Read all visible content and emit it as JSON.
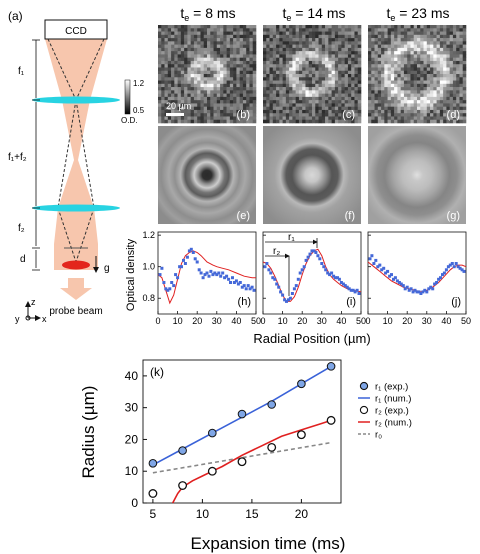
{
  "panel_labels": {
    "a": "(a)",
    "b": "(b)",
    "c": "(c)",
    "d": "(d)",
    "e": "(e)",
    "f": "(f)",
    "g": "(g)",
    "h": "(h)",
    "i": "(i)",
    "j": "(j)",
    "k": "(k)"
  },
  "setup": {
    "ccd": "CCD",
    "f1": "f₁",
    "f1f2": "f₁+f₂",
    "f2": "f₂",
    "d": "d",
    "g": "g",
    "probe": "probe beam",
    "axis_z": "z",
    "axis_y": "y",
    "axis_x": "x",
    "colors": {
      "beam": "#f7c6ad",
      "lens": "#28d3e2",
      "cloud": "#e3261c"
    }
  },
  "times": [
    {
      "base": "t",
      "sub": "e",
      "rest": " = 8 ms"
    },
    {
      "base": "t",
      "sub": "e",
      "rest": " = 14 ms"
    },
    {
      "base": "t",
      "sub": "e",
      "rest": " = 23 ms"
    }
  ],
  "colorbar": {
    "max": "1.2",
    "min": "0.5",
    "label": "O.D."
  },
  "scalebar": "20 µm",
  "profiles": {
    "ylabel": "Optical density",
    "xlabel": "Radial Position (µm)",
    "yticks": [
      "0.8",
      "1.0",
      "1.2"
    ],
    "xticks": [
      "0",
      "10",
      "20",
      "30",
      "40",
      "50"
    ],
    "r1": "r₁",
    "r2": "r₂",
    "colors": {
      "exp": "#4468d8",
      "num": "#e02020"
    }
  },
  "chart_data": [
    {
      "type": "line",
      "title": "(h)",
      "xlabel": "Radial Position (µm)",
      "ylabel": "Optical density",
      "xlim": [
        0,
        50
      ],
      "ylim": [
        0.7,
        1.22
      ],
      "series": [
        {
          "points": [
            [
              1,
              0.95
            ],
            [
              2,
              0.99
            ],
            [
              3,
              0.9
            ],
            [
              4,
              0.86
            ],
            [
              5,
              0.85
            ],
            [
              6,
              0.86
            ],
            [
              7,
              0.9
            ],
            [
              8,
              0.88
            ],
            [
              9,
              0.95
            ],
            [
              10,
              0.93
            ],
            [
              11,
              1.0
            ],
            [
              12,
              1.0
            ],
            [
              13,
              1.04
            ],
            [
              14,
              1.02
            ],
            [
              15,
              1.06
            ],
            [
              16,
              1.1
            ],
            [
              17,
              1.11
            ],
            [
              18,
              1.09
            ],
            [
              19,
              1.05
            ],
            [
              20,
              1.03
            ],
            [
              21,
              0.98
            ],
            [
              22,
              0.96
            ],
            [
              23,
              0.93
            ],
            [
              24,
              0.95
            ],
            [
              25,
              0.96
            ],
            [
              26,
              0.94
            ],
            [
              27,
              0.97
            ],
            [
              28,
              0.95
            ],
            [
              29,
              0.96
            ],
            [
              30,
              0.95
            ],
            [
              31,
              0.96
            ],
            [
              32,
              0.94
            ],
            [
              33,
              0.96
            ],
            [
              34,
              0.93
            ],
            [
              35,
              0.94
            ],
            [
              36,
              0.92
            ],
            [
              37,
              0.9
            ],
            [
              38,
              0.93
            ],
            [
              39,
              0.9
            ],
            [
              40,
              0.91
            ],
            [
              41,
              0.89
            ],
            [
              42,
              0.9
            ],
            [
              43,
              0.87
            ],
            [
              44,
              0.88
            ],
            [
              45,
              0.86
            ],
            [
              46,
              0.88
            ],
            [
              47,
              0.86
            ],
            [
              48,
              0.87
            ],
            [
              49,
              0.85
            ]
          ]
        },
        {
          "points": [
            [
              0,
              0.95
            ],
            [
              2,
              0.93
            ],
            [
              4,
              0.85
            ],
            [
              6,
              0.77
            ],
            [
              8,
              0.82
            ],
            [
              10,
              0.92
            ],
            [
              12,
              1.02
            ],
            [
              14,
              1.07
            ],
            [
              16,
              1.09
            ],
            [
              18,
              1.1
            ],
            [
              20,
              1.09
            ],
            [
              22,
              1.07
            ],
            [
              25,
              1.03
            ],
            [
              28,
              1.01
            ],
            [
              30,
              1.0
            ],
            [
              33,
              0.99
            ],
            [
              36,
              0.98
            ],
            [
              40,
              0.96
            ],
            [
              44,
              0.94
            ],
            [
              48,
              0.93
            ],
            [
              50,
              0.93
            ]
          ]
        }
      ]
    },
    {
      "type": "line",
      "title": "(i)",
      "xlabel": "Radial Position (µm)",
      "ylabel": "Optical density",
      "xlim": [
        0,
        50
      ],
      "ylim": [
        0.7,
        1.22
      ],
      "series": [
        {
          "points": [
            [
              1,
              1.0
            ],
            [
              2,
              1.02
            ],
            [
              3,
              0.98
            ],
            [
              4,
              0.96
            ],
            [
              5,
              0.93
            ],
            [
              6,
              0.92
            ],
            [
              7,
              0.89
            ],
            [
              8,
              0.87
            ],
            [
              9,
              0.84
            ],
            [
              10,
              0.82
            ],
            [
              11,
              0.79
            ],
            [
              12,
              0.78
            ],
            [
              13,
              0.79
            ],
            [
              14,
              0.8
            ],
            [
              15,
              0.83
            ],
            [
              16,
              0.86
            ],
            [
              17,
              0.88
            ],
            [
              18,
              0.92
            ],
            [
              19,
              0.96
            ],
            [
              20,
              0.98
            ],
            [
              21,
              1.0
            ],
            [
              22,
              1.04
            ],
            [
              23,
              1.06
            ],
            [
              24,
              1.08
            ],
            [
              25,
              1.1
            ],
            [
              26,
              1.1
            ],
            [
              27,
              1.09
            ],
            [
              28,
              1.07
            ],
            [
              29,
              1.05
            ],
            [
              30,
              1.02
            ],
            [
              31,
              1.0
            ],
            [
              32,
              0.98
            ],
            [
              33,
              0.96
            ],
            [
              34,
              0.95
            ],
            [
              35,
              0.96
            ],
            [
              36,
              0.94
            ],
            [
              37,
              0.93
            ],
            [
              38,
              0.93
            ],
            [
              39,
              0.92
            ],
            [
              40,
              0.9
            ],
            [
              41,
              0.89
            ],
            [
              42,
              0.88
            ],
            [
              43,
              0.87
            ],
            [
              44,
              0.86
            ],
            [
              45,
              0.85
            ],
            [
              46,
              0.85
            ],
            [
              47,
              0.84
            ],
            [
              48,
              0.85
            ],
            [
              49,
              0.83
            ]
          ]
        },
        {
          "points": [
            [
              0,
              1.03
            ],
            [
              2,
              1.02
            ],
            [
              4,
              0.99
            ],
            [
              6,
              0.94
            ],
            [
              8,
              0.88
            ],
            [
              10,
              0.82
            ],
            [
              12,
              0.78
            ],
            [
              14,
              0.78
            ],
            [
              16,
              0.81
            ],
            [
              18,
              0.87
            ],
            [
              20,
              0.95
            ],
            [
              22,
              1.02
            ],
            [
              24,
              1.07
            ],
            [
              26,
              1.1
            ],
            [
              28,
              1.11
            ],
            [
              30,
              1.07
            ],
            [
              32,
              1.0
            ],
            [
              34,
              0.95
            ],
            [
              36,
              0.92
            ],
            [
              38,
              0.9
            ],
            [
              40,
              0.88
            ],
            [
              43,
              0.86
            ],
            [
              46,
              0.85
            ],
            [
              50,
              0.84
            ]
          ]
        }
      ]
    },
    {
      "type": "line",
      "title": "(j)",
      "xlabel": "Radial Position (µm)",
      "ylabel": "Optical density",
      "xlim": [
        0,
        50
      ],
      "ylim": [
        0.7,
        1.22
      ],
      "series": [
        {
          "points": [
            [
              1,
              1.05
            ],
            [
              2,
              1.07
            ],
            [
              3,
              1.02
            ],
            [
              4,
              1.04
            ],
            [
              5,
              1.0
            ],
            [
              6,
              1.01
            ],
            [
              7,
              0.98
            ],
            [
              8,
              0.99
            ],
            [
              9,
              0.96
            ],
            [
              10,
              0.97
            ],
            [
              11,
              0.94
            ],
            [
              12,
              0.95
            ],
            [
              13,
              0.92
            ],
            [
              14,
              0.93
            ],
            [
              15,
              0.91
            ],
            [
              16,
              0.9
            ],
            [
              17,
              0.89
            ],
            [
              18,
              0.88
            ],
            [
              19,
              0.86
            ],
            [
              20,
              0.87
            ],
            [
              21,
              0.85
            ],
            [
              22,
              0.86
            ],
            [
              23,
              0.84
            ],
            [
              24,
              0.85
            ],
            [
              25,
              0.84
            ],
            [
              26,
              0.84
            ],
            [
              27,
              0.83
            ],
            [
              28,
              0.84
            ],
            [
              29,
              0.85
            ],
            [
              30,
              0.84
            ],
            [
              31,
              0.86
            ],
            [
              32,
              0.87
            ],
            [
              33,
              0.86
            ],
            [
              34,
              0.89
            ],
            [
              35,
              0.9
            ],
            [
              36,
              0.92
            ],
            [
              37,
              0.93
            ],
            [
              38,
              0.95
            ],
            [
              39,
              0.96
            ],
            [
              40,
              0.98
            ],
            [
              41,
              1.0
            ],
            [
              42,
              1.01
            ],
            [
              43,
              1.02
            ],
            [
              44,
              1.0
            ],
            [
              45,
              1.02
            ],
            [
              46,
              1.0
            ],
            [
              47,
              0.99
            ],
            [
              48,
              0.98
            ],
            [
              49,
              0.97
            ]
          ]
        },
        {
          "points": [
            [
              0,
              1.03
            ],
            [
              3,
              1.0
            ],
            [
              6,
              0.97
            ],
            [
              9,
              0.94
            ],
            [
              12,
              0.91
            ],
            [
              15,
              0.89
            ],
            [
              18,
              0.87
            ],
            [
              21,
              0.86
            ],
            [
              24,
              0.85
            ],
            [
              27,
              0.84
            ],
            [
              30,
              0.85
            ],
            [
              33,
              0.87
            ],
            [
              36,
              0.9
            ],
            [
              39,
              0.94
            ],
            [
              42,
              0.98
            ],
            [
              44,
              1.0
            ],
            [
              46,
              1.01
            ],
            [
              48,
              1.01
            ],
            [
              50,
              1.0
            ]
          ]
        }
      ]
    },
    {
      "type": "scatter",
      "xlabel": "Expansion time (ms)",
      "ylabel": "Radius (µm)",
      "xlim": [
        4,
        24
      ],
      "ylim": [
        0,
        45
      ],
      "xticks": [
        "5",
        "10",
        "15",
        "20"
      ],
      "yticks": [
        "0",
        "10",
        "20",
        "30",
        "40"
      ],
      "legend_position": "right",
      "series": [
        {
          "name": "r₁ (exp.)",
          "x": [
            5,
            8,
            11,
            14,
            17,
            20,
            23
          ],
          "y": [
            12.5,
            16.5,
            22,
            28,
            31,
            37.5,
            43
          ]
        },
        {
          "name": "r₁ (num.)",
          "x": [
            5,
            8,
            11,
            14,
            17,
            20,
            23
          ],
          "y": [
            12,
            17,
            22,
            27,
            32,
            37.5,
            43
          ]
        },
        {
          "name": "r₂ (exp.)",
          "x": [
            5,
            8,
            11,
            14,
            17,
            20,
            23
          ],
          "y": [
            3,
            5.5,
            10,
            13,
            17.5,
            21.5,
            26
          ]
        },
        {
          "name": "r₂ (num.)",
          "x": [
            7,
            7.5,
            8,
            9,
            10,
            11,
            12,
            14,
            16,
            18,
            20,
            22,
            23
          ],
          "y": [
            0,
            3,
            5,
            7,
            8.5,
            10,
            11.5,
            15,
            18,
            21,
            23,
            25,
            26
          ]
        },
        {
          "name": "r₀",
          "x": [
            5,
            23
          ],
          "y": [
            9.5,
            19
          ]
        }
      ]
    }
  ],
  "images": {
    "b": {
      "ring_r": 0.26,
      "ring_w": 0.12,
      "noise": 0.22,
      "dark": 0.4
    },
    "c": {
      "ring_r": 0.4,
      "ring_w": 0.11,
      "noise": 0.22,
      "dark": 0.38
    },
    "d": {
      "ring_r": 0.58,
      "ring_w": 0.16,
      "noise": 0.23,
      "dark": 0.42
    }
  }
}
